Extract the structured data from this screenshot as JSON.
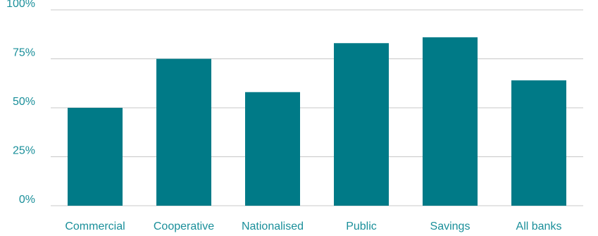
{
  "chart_data": {
    "type": "bar",
    "title": "",
    "xlabel": "",
    "ylabel": "",
    "categories": [
      "Commercial",
      "Cooperative",
      "Nationalised",
      "Public",
      "Savings",
      "All banks"
    ],
    "values": [
      50,
      75,
      58,
      83,
      86,
      64
    ],
    "ylim": [
      0,
      100
    ],
    "yticks": [
      0,
      25,
      50,
      75,
      100
    ],
    "ytick_labels": [
      "0%",
      "25%",
      "50%",
      "75%",
      "100%"
    ],
    "grid": true,
    "legend": "none",
    "colors": {
      "bar": "#007a87",
      "text": "#1a8f9a",
      "grid": "#c8c8c8"
    }
  }
}
